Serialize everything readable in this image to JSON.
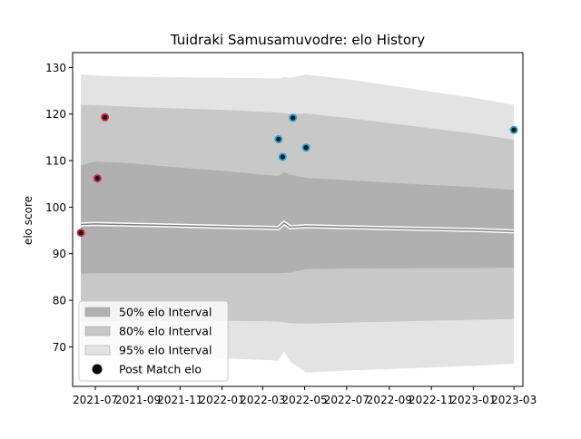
{
  "chart_data": {
    "type": "area",
    "title": "Tuidraki Samusamuvodre: elo History",
    "xlabel": "",
    "ylabel": "elo score",
    "ylim": [
      61.5,
      133.2
    ],
    "xlim": [
      "2021-05-29",
      "2023-03-14"
    ],
    "x_ticks": [
      {
        "date": "2021-07-01",
        "label": "2021-07"
      },
      {
        "date": "2021-09-01",
        "label": "2021-09"
      },
      {
        "date": "2021-11-01",
        "label": "2021-11"
      },
      {
        "date": "2022-01-01",
        "label": "2022-01"
      },
      {
        "date": "2022-03-01",
        "label": "2022-03"
      },
      {
        "date": "2022-05-01",
        "label": "2022-05"
      },
      {
        "date": "2022-07-01",
        "label": "2022-07"
      },
      {
        "date": "2022-09-01",
        "label": "2022-09"
      },
      {
        "date": "2022-11-01",
        "label": "2022-11"
      },
      {
        "date": "2023-01-01",
        "label": "2023-01"
      },
      {
        "date": "2023-03-01",
        "label": "2023-03"
      }
    ],
    "y_ticks": [
      70,
      80,
      90,
      100,
      110,
      120,
      130
    ],
    "grid": false,
    "legend": {
      "position": "lower-left",
      "entries": [
        {
          "label": "50% elo Interval",
          "color": "#b0b0b0"
        },
        {
          "label": "80% elo Interval",
          "color": "#c8c8c8"
        },
        {
          "label": "95% elo Interval",
          "color": "#e3e3e3"
        },
        {
          "label": "Post Match elo",
          "color": "#000000"
        }
      ]
    },
    "x": [
      "2021-06-10",
      "2021-07-01",
      "2021-08-01",
      "2021-09-01",
      "2021-11-01",
      "2022-01-01",
      "2022-03-01",
      "2022-03-24",
      "2022-04-01",
      "2022-04-10",
      "2022-05-03",
      "2022-07-01",
      "2022-10-01",
      "2023-01-01",
      "2023-03-01"
    ],
    "mean": [
      96.3,
      96.4,
      96.3,
      96.2,
      96.0,
      95.8,
      95.6,
      95.5,
      96.6,
      95.7,
      95.9,
      95.7,
      95.4,
      95.1,
      94.8
    ],
    "band_95": {
      "upper": [
        128.5,
        128.3,
        128.1,
        128.0,
        127.9,
        127.8,
        127.7,
        127.6,
        128.0,
        127.8,
        128.5,
        127.5,
        125.5,
        123.5,
        122.0
      ],
      "lower": [
        67.8,
        67.9,
        68.0,
        67.9,
        67.7,
        67.5,
        67.2,
        67.0,
        69.0,
        66.8,
        64.5,
        64.9,
        65.4,
        65.9,
        66.4
      ]
    },
    "band_80": {
      "upper": [
        122.0,
        121.9,
        121.7,
        121.5,
        121.2,
        120.9,
        120.5,
        120.3,
        120.2,
        120.0,
        120.1,
        119.2,
        117.5,
        115.8,
        114.5
      ],
      "lower": [
        75.3,
        75.4,
        75.5,
        75.6,
        75.6,
        75.6,
        75.5,
        75.4,
        75.3,
        75.1,
        75.0,
        75.2,
        75.5,
        75.8,
        76.0
      ]
    },
    "band_50": {
      "upper": [
        109.0,
        109.8,
        109.6,
        109.3,
        108.5,
        107.8,
        107.0,
        106.7,
        107.5,
        107.0,
        106.3,
        105.8,
        105.0,
        104.3,
        103.7
      ],
      "lower": [
        85.7,
        85.8,
        85.8,
        85.8,
        85.8,
        85.8,
        85.8,
        85.8,
        85.9,
        85.9,
        86.7,
        86.8,
        86.9,
        86.9,
        87.0
      ]
    },
    "series": [
      {
        "name": "Post Match elo",
        "x": [
          "2021-06-10",
          "2021-07-04",
          "2021-07-15",
          "2022-03-24",
          "2022-03-30",
          "2022-04-14",
          "2022-05-03",
          "2023-03-01"
        ],
        "values": [
          94.5,
          106.2,
          119.3,
          114.6,
          110.8,
          119.2,
          112.8,
          116.6
        ]
      }
    ],
    "point_outline_colors": [
      "#d6274c",
      "#d6274c",
      "#d6274c",
      "#1fa6d9",
      "#1fa6d9",
      "#1fa6d9",
      "#1fa6d9",
      "#1fa6d9"
    ],
    "band_colors": {
      "band_95": "#e3e3e3",
      "band_80": "#c8c8c8",
      "band_50": "#b0b0b0",
      "mean_line": "#7f7f7f",
      "mean_halo": "#ffffff"
    }
  }
}
